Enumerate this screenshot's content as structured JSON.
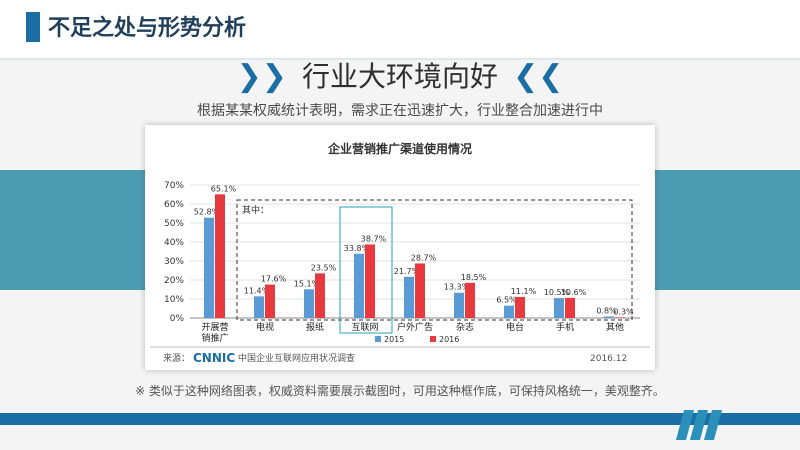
{
  "header": {
    "title": "不足之处与形势分析"
  },
  "heading": {
    "left_chevrons": "❯❯",
    "text": "行业大环境向好",
    "right_chevrons": "❮❮"
  },
  "subtitle": "根据某某权威统计表明，需求正在迅速扩大，行业整合加速进行中",
  "footnote": "※ 类似于这种网络图表，权威资料需要展示截图时，可用这种框作底，可保持风格统一，美观整齐。",
  "chart_data": {
    "type": "bar",
    "title": "企业营销推广渠道使用情况",
    "categories": [
      [
        "开展营",
        "销推广"
      ],
      [
        "电视"
      ],
      [
        "报纸"
      ],
      [
        "互联网"
      ],
      [
        "户外广告"
      ],
      [
        "杂志"
      ],
      [
        "电台"
      ],
      [
        "手机"
      ],
      [
        "其他"
      ]
    ],
    "series": [
      {
        "name": "2015",
        "color": "#5b9bd5",
        "values": [
          52.8,
          11.4,
          15.1,
          33.8,
          21.7,
          13.3,
          6.5,
          10.5,
          0.8
        ]
      },
      {
        "name": "2016",
        "color": "#e8393e",
        "values": [
          65.1,
          17.6,
          23.5,
          38.7,
          28.7,
          18.5,
          11.1,
          10.6,
          0.3
        ]
      }
    ],
    "ylim": [
      0,
      70
    ],
    "yticks": [
      "0%",
      "10%",
      "20%",
      "30%",
      "40%",
      "50%",
      "60%",
      "70%"
    ],
    "annotation": "其中：",
    "source_label": "来源：",
    "source_logo": "CNNIC",
    "source_text": "中国企业互联网应用状况调查",
    "date": "2016.12"
  }
}
